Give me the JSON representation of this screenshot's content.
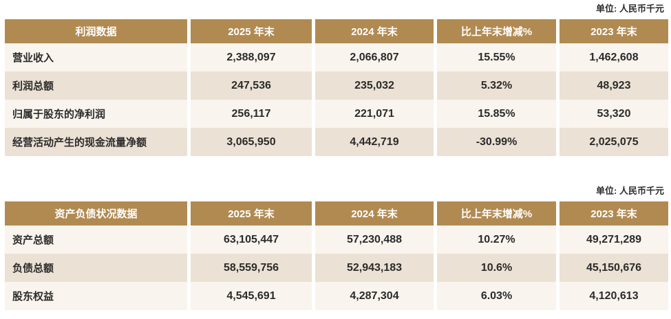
{
  "colors": {
    "header_bg": "#b18a52",
    "row_odd": "#f9f4ed",
    "row_even": "#ebe1d4",
    "header_text": "#ffffff",
    "body_text": "#2b2b2b"
  },
  "tables": [
    {
      "name": "profit-data",
      "unit": "单位: 人民币千元",
      "columns": [
        "利润数据",
        "2025 年末",
        "2024 年末",
        "比上年末增减%",
        "2023 年末"
      ],
      "rows": [
        [
          "营业收入",
          "2,388,097",
          "2,066,807",
          "15.55%",
          "1,462,608"
        ],
        [
          "利润总额",
          "247,536",
          "235,032",
          "5.32%",
          "48,923"
        ],
        [
          "归属于股东的净利润",
          "256,117",
          "221,071",
          "15.85%",
          "53,320"
        ],
        [
          "经营活动产生的现金流量净额",
          "3,065,950",
          "4,442,719",
          "-30.99%",
          "2,025,075"
        ]
      ]
    },
    {
      "name": "balance-sheet-data",
      "unit": "单位: 人民币千元",
      "columns": [
        "资产负债状况数据",
        "2025 年末",
        "2024 年末",
        "比上年末增减%",
        "2023 年末"
      ],
      "rows": [
        [
          "资产总额",
          "63,105,447",
          "57,230,488",
          "10.27%",
          "49,271,289"
        ],
        [
          "负债总额",
          "58,559,756",
          "52,943,183",
          "10.6%",
          "45,150,676"
        ],
        [
          "股东权益",
          "4,545,691",
          "4,287,304",
          "6.03%",
          "4,120,613"
        ]
      ]
    }
  ]
}
